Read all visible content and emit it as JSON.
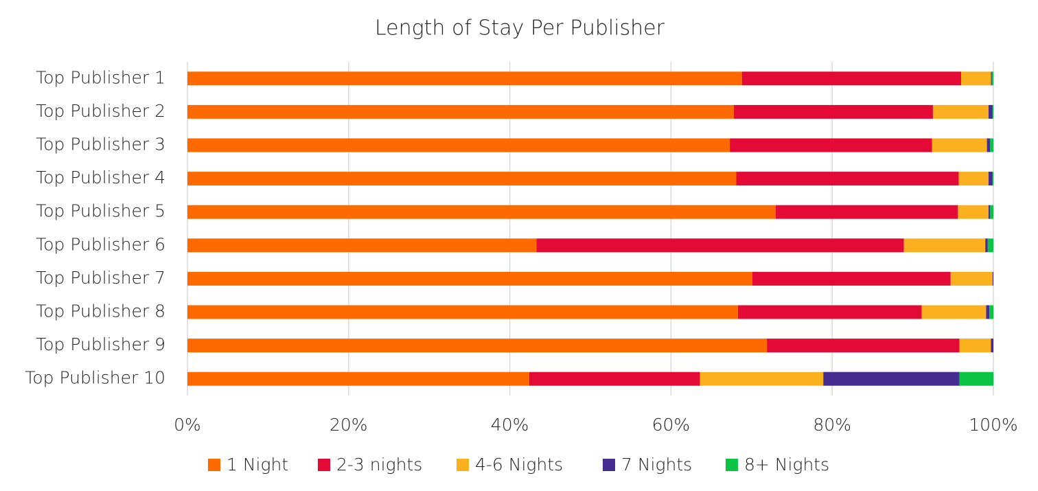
{
  "chart_data": {
    "type": "stacked-barh",
    "title": "Length of Stay Per Publisher",
    "categories": [
      "Top Publisher 1",
      "Top Publisher 2",
      "Top Publisher 3",
      "Top Publisher 4",
      "Top Publisher 5",
      "Top Publisher 6",
      "Top Publisher 7",
      "Top Publisher 8",
      "Top Publisher 9",
      "Top Publisher 10"
    ],
    "series": [
      {
        "name": "1 Night",
        "color": "#ff6a00",
        "values": [
          68.8,
          67.8,
          67.3,
          68.1,
          73.0,
          43.3,
          70.1,
          68.3,
          71.9,
          42.4
        ]
      },
      {
        "name": "2-3 nights",
        "color": "#e30b35",
        "values": [
          27.2,
          24.7,
          25.1,
          27.6,
          22.6,
          45.6,
          24.6,
          22.8,
          23.9,
          21.2
        ]
      },
      {
        "name": "4-6 Nights",
        "color": "#fbb01f",
        "values": [
          3.7,
          6.9,
          6.8,
          3.7,
          3.8,
          10.1,
          5.2,
          8.0,
          3.9,
          15.3
        ]
      },
      {
        "name": "7 Nights",
        "color": "#452c90",
        "values": [
          0.1,
          0.5,
          0.4,
          0.5,
          0.2,
          0.3,
          0.1,
          0.4,
          0.3,
          16.9
        ]
      },
      {
        "name": "8+ Nights",
        "color": "#0bc443",
        "values": [
          0.2,
          0.1,
          0.4,
          0.1,
          0.4,
          0.7,
          0.0,
          0.5,
          0.0,
          4.2
        ]
      }
    ],
    "xlim": [
      0,
      100
    ],
    "xticks": [
      {
        "value": 0,
        "label": "0%"
      },
      {
        "value": 20,
        "label": "20%"
      },
      {
        "value": 40,
        "label": "40%"
      },
      {
        "value": 60,
        "label": "60%"
      },
      {
        "value": 80,
        "label": "80%"
      },
      {
        "value": 100,
        "label": "100%"
      }
    ],
    "grid": true,
    "legend": "bottom"
  }
}
